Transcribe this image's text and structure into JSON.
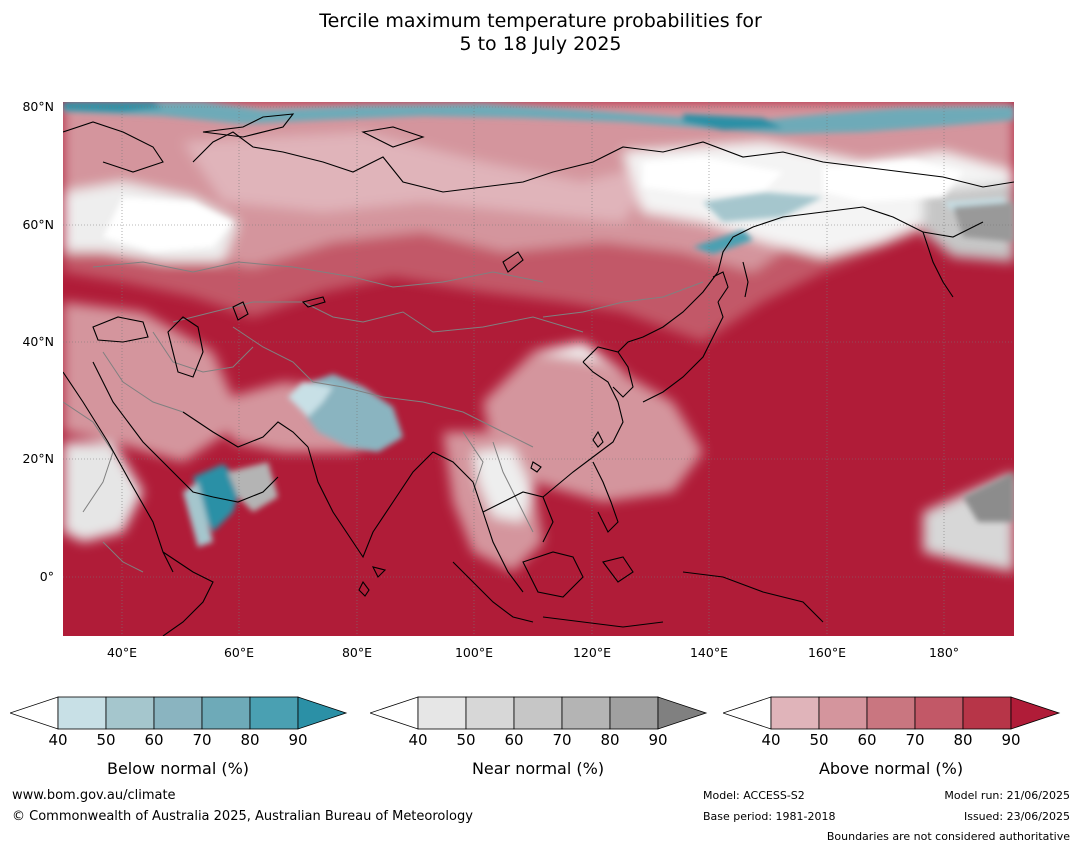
{
  "title_line1": "Tercile maximum temperature probabilities for",
  "title_line2": "5 to 18 July 2025",
  "lat_labels": [
    "80°N",
    "60°N",
    "40°N",
    "20°N",
    "0°"
  ],
  "lon_labels": [
    "40°E",
    "60°E",
    "80°E",
    "100°E",
    "120°E",
    "140°E",
    "160°E",
    "180°"
  ],
  "legends": [
    {
      "title": "Below normal (%)",
      "ticks": [
        "40",
        "50",
        "60",
        "70",
        "80",
        "90"
      ],
      "colors": [
        "#ffffff",
        "#c8e0e6",
        "#a5c6cd",
        "#8ab4c0",
        "#6eaab8",
        "#4aa0b2",
        "#2b90a6"
      ]
    },
    {
      "title": "Near normal (%)",
      "ticks": [
        "40",
        "50",
        "60",
        "70",
        "80",
        "90"
      ],
      "colors": [
        "#ffffff",
        "#e6e6e6",
        "#d7d7d7",
        "#c6c6c6",
        "#b4b4b4",
        "#a0a0a0",
        "#808080"
      ]
    },
    {
      "title": "Above normal (%)",
      "ticks": [
        "40",
        "50",
        "60",
        "70",
        "80",
        "90"
      ],
      "colors": [
        "#ffffff",
        "#e0b4ba",
        "#d4959d",
        "#c97680",
        "#c25867",
        "#b73548",
        "#b01c38"
      ]
    }
  ],
  "footer": {
    "url": "www.bom.gov.au/climate",
    "copyright": "© Commonwealth of Australia 2025, Australian Bureau of Meteorology",
    "model": "Model: ACCESS-S2",
    "base_period": "Base period: 1981-2018",
    "model_run": "Model run: 21/06/2025",
    "issued": "Issued: 23/06/2025",
    "boundaries": "Boundaries are not considered authoritative"
  },
  "palette": {
    "above_dark": "#b01c38",
    "above_mid": "#c25867",
    "above_light": "#d4959d",
    "above_pale": "#e0b4ba",
    "near_light": "#e6e6e6",
    "near_mid": "#c6c6c6",
    "near_dark": "#8c8c8c",
    "below_light": "#c8e0e6",
    "below_mid": "#8ab4c0",
    "below_dark": "#2b90a6"
  }
}
